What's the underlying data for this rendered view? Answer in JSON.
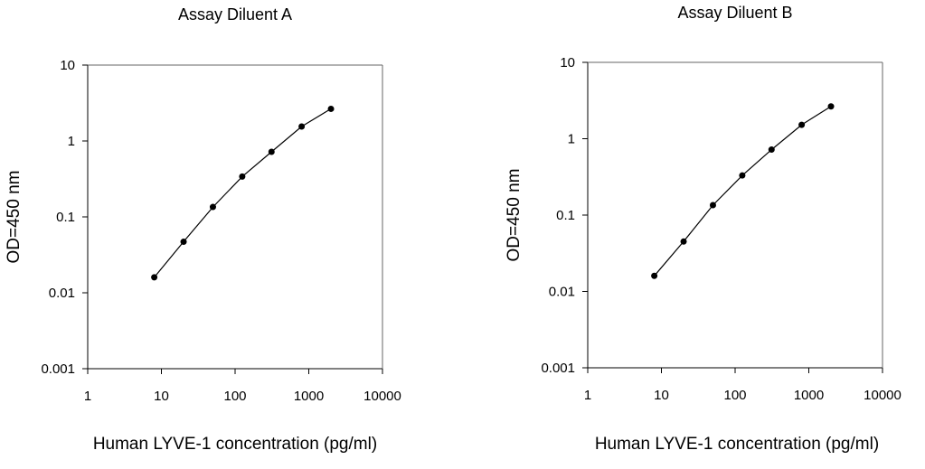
{
  "chart_data": [
    {
      "type": "line",
      "title": "Assay Diluent A",
      "xlabel": "Human LYVE-1 concentration (pg/ml)",
      "ylabel": "OD=450 nm",
      "x_scale": "log",
      "y_scale": "log",
      "xlim": [
        1,
        10000
      ],
      "ylim": [
        0.001,
        10
      ],
      "x_ticks": [
        "1",
        "10",
        "100",
        "1000",
        "10000"
      ],
      "y_ticks": [
        "0.001",
        "0.01",
        "0.1",
        "1",
        "10"
      ],
      "grid": false,
      "series": [
        {
          "x": [
            8,
            20,
            50,
            125,
            312,
            800,
            2000
          ],
          "y": [
            0.016,
            0.047,
            0.135,
            0.34,
            0.72,
            1.55,
            2.65
          ]
        }
      ]
    },
    {
      "type": "line",
      "title": "Assay Diluent B",
      "xlabel": "Human LYVE-1 concentration (pg/ml)",
      "ylabel": "OD=450 nm",
      "x_scale": "log",
      "y_scale": "log",
      "xlim": [
        1,
        10000
      ],
      "ylim": [
        0.001,
        10
      ],
      "x_ticks": [
        "1",
        "10",
        "100",
        "1000",
        "10000"
      ],
      "y_ticks": [
        "0.001",
        "0.01",
        "0.1",
        "1",
        "10"
      ],
      "grid": false,
      "series": [
        {
          "x": [
            8,
            20,
            50,
            125,
            312,
            800,
            2000
          ],
          "y": [
            0.016,
            0.045,
            0.135,
            0.33,
            0.72,
            1.52,
            2.65
          ]
        }
      ]
    }
  ]
}
